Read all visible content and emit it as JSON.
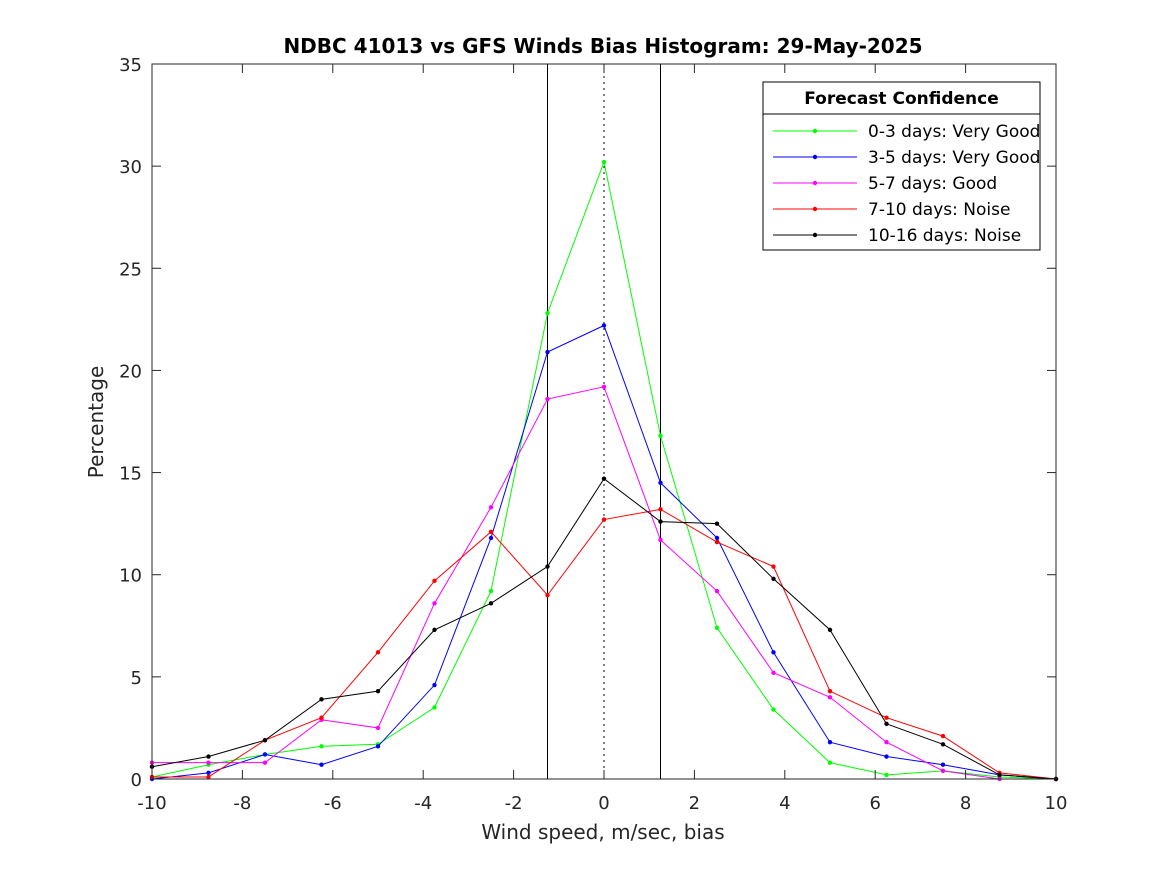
{
  "chart_data": {
    "type": "line",
    "title": "NDBC 41013 vs GFS Winds Bias Histogram: 29-May-2025",
    "xlabel": "Wind speed, m/sec, bias",
    "ylabel": "Percentage",
    "xlim": [
      -10,
      10
    ],
    "ylim": [
      0,
      35
    ],
    "xticks": [
      -10,
      -8,
      -6,
      -4,
      -2,
      0,
      2,
      4,
      6,
      8,
      10
    ],
    "yticks": [
      0,
      5,
      10,
      15,
      20,
      25,
      30,
      35
    ],
    "grid": false,
    "legend_title": "Forecast Confidence",
    "legend_position": "top-right",
    "vertical_lines": [
      {
        "x": -1.25,
        "style": "solid"
      },
      {
        "x": 0,
        "style": "dotted"
      },
      {
        "x": 1.25,
        "style": "solid"
      }
    ],
    "x": [
      -10,
      -8.75,
      -7.5,
      -6.25,
      -5,
      -3.75,
      -2.5,
      -1.25,
      0,
      1.25,
      2.5,
      3.75,
      5,
      6.25,
      7.5,
      8.75,
      10
    ],
    "series": [
      {
        "name": "0-3 days: Very Good",
        "color": "#00ff00",
        "values": [
          0.1,
          0.7,
          1.2,
          1.6,
          1.7,
          3.5,
          9.2,
          22.8,
          30.2,
          16.8,
          7.4,
          3.4,
          0.8,
          0.2,
          0.4,
          0.1,
          0
        ]
      },
      {
        "name": "3-5 days: Very Good",
        "color": "#0000ff",
        "values": [
          0.0,
          0.3,
          1.2,
          0.7,
          1.6,
          4.6,
          11.8,
          20.9,
          22.2,
          14.5,
          11.8,
          6.2,
          1.8,
          1.1,
          0.7,
          0.2,
          0
        ]
      },
      {
        "name": "5-7 days: Good",
        "color": "#ff00ff",
        "values": [
          0.8,
          0.8,
          0.8,
          2.9,
          2.5,
          8.6,
          13.3,
          18.6,
          19.2,
          11.7,
          9.2,
          5.2,
          4.0,
          1.8,
          0.4,
          0.0,
          0
        ]
      },
      {
        "name": "7-10 days: Noise",
        "color": "#ff0000",
        "values": [
          0.1,
          0.1,
          1.9,
          3.0,
          6.2,
          9.7,
          12.1,
          9.0,
          12.7,
          13.2,
          11.6,
          10.4,
          4.3,
          3.0,
          2.1,
          0.3,
          0
        ]
      },
      {
        "name": "10-16 days: Noise",
        "color": "#000000",
        "values": [
          0.6,
          1.1,
          1.9,
          3.9,
          4.3,
          7.3,
          8.6,
          10.4,
          14.7,
          12.6,
          12.5,
          9.8,
          7.3,
          2.7,
          1.7,
          0.2,
          0
        ]
      }
    ]
  }
}
